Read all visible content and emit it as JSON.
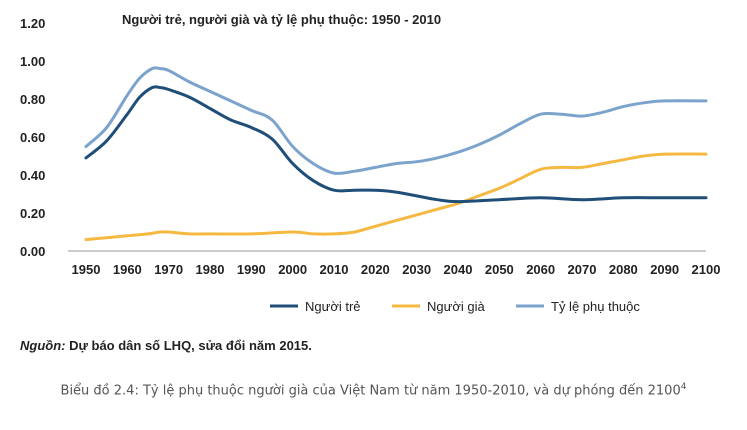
{
  "chart_data": {
    "type": "line",
    "title": "Người trẻ, người già và tỷ lệ phụ thuộc: 1950 - 2010",
    "x_ticks": [
      "1950",
      "1960",
      "1970",
      "1980",
      "1990",
      "2000",
      "2010",
      "2020",
      "2030",
      "2040",
      "2050",
      "2060",
      "2070",
      "2080",
      "2090",
      "2100"
    ],
    "y_ticks": [
      "0.00",
      "0.20",
      "0.40",
      "0.60",
      "0.80",
      "1.00",
      "1.20"
    ],
    "xlim": [
      1950,
      2100
    ],
    "ylim": [
      0,
      1.2
    ],
    "legend_position": "bottom",
    "series": [
      {
        "name": "Người trẻ",
        "color": "#1f4e79",
        "x": [
          1950,
          1955,
          1960,
          1963,
          1966,
          1968,
          1970,
          1975,
          1980,
          1985,
          1990,
          1995,
          2000,
          2005,
          2010,
          2015,
          2020,
          2025,
          2030,
          2035,
          2040,
          2050,
          2060,
          2070,
          2080,
          2090,
          2100
        ],
        "y": [
          0.49,
          0.58,
          0.72,
          0.81,
          0.86,
          0.86,
          0.85,
          0.81,
          0.75,
          0.69,
          0.65,
          0.59,
          0.46,
          0.37,
          0.32,
          0.32,
          0.32,
          0.31,
          0.29,
          0.27,
          0.26,
          0.27,
          0.28,
          0.27,
          0.28,
          0.28,
          0.28
        ]
      },
      {
        "name": "Người già",
        "color": "#f5b942",
        "x": [
          1950,
          1955,
          1960,
          1965,
          1968,
          1970,
          1975,
          1980,
          1990,
          2000,
          2005,
          2010,
          2015,
          2020,
          2025,
          2030,
          2035,
          2040,
          2045,
          2050,
          2055,
          2060,
          2065,
          2070,
          2075,
          2080,
          2085,
          2090,
          2100
        ],
        "y": [
          0.06,
          0.07,
          0.08,
          0.09,
          0.1,
          0.1,
          0.09,
          0.09,
          0.09,
          0.1,
          0.09,
          0.09,
          0.1,
          0.13,
          0.16,
          0.19,
          0.22,
          0.25,
          0.29,
          0.33,
          0.38,
          0.43,
          0.44,
          0.44,
          0.46,
          0.48,
          0.5,
          0.51,
          0.51
        ]
      },
      {
        "name": "Tỷ lệ phụ thuộc",
        "color": "#7ba3cc",
        "x": [
          1950,
          1955,
          1960,
          1963,
          1966,
          1968,
          1970,
          1975,
          1980,
          1985,
          1990,
          1995,
          2000,
          2005,
          2010,
          2015,
          2020,
          2025,
          2030,
          2035,
          2040,
          2045,
          2050,
          2055,
          2060,
          2065,
          2070,
          2075,
          2080,
          2085,
          2090,
          2100
        ],
        "y": [
          0.55,
          0.65,
          0.82,
          0.91,
          0.96,
          0.96,
          0.95,
          0.89,
          0.84,
          0.79,
          0.74,
          0.69,
          0.55,
          0.46,
          0.41,
          0.42,
          0.44,
          0.46,
          0.47,
          0.49,
          0.52,
          0.56,
          0.61,
          0.67,
          0.72,
          0.72,
          0.71,
          0.73,
          0.76,
          0.78,
          0.79,
          0.79
        ]
      }
    ]
  },
  "source": {
    "label": "Nguồn:",
    "text": " Dự báo dân số LHQ, sửa đổi năm 2015."
  },
  "caption": {
    "text": "Biểu đồ 2.4: Tỷ lệ phụ thuộc người già của Việt Nam từ năm 1950-2010, và dự phóng đến 2100",
    "sup": "4"
  }
}
